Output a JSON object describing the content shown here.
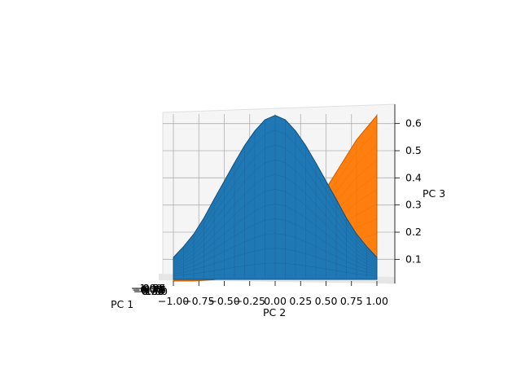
{
  "chart_data": {
    "type": "surface3d",
    "title": "",
    "xlabel": "PC 1",
    "ylabel": "PC 2",
    "zlabel": "PC 3",
    "y_ticks": [
      "−1.00",
      "−0.75",
      "−0.50",
      "−0.25",
      "0.00",
      "0.25",
      "0.50",
      "0.75",
      "1.00"
    ],
    "z_ticks": [
      "0.1",
      "0.2",
      "0.3",
      "0.4",
      "0.5",
      "0.6"
    ],
    "x_ticks": [
      "−1.00",
      "−0.75",
      "−0.50",
      "−0.25",
      "0.00",
      "0.25",
      "0.50",
      "0.75",
      "1.00"
    ],
    "ylim": [
      -1.0,
      1.0
    ],
    "zlim": [
      0.02,
      0.65
    ],
    "grid": true,
    "series": [
      {
        "color": "#1f77b4",
        "kind": "gaussian surface",
        "peak_y": 0.0,
        "sigma": 0.45,
        "peak_z": 0.63,
        "y": [
          -1.0,
          -0.9,
          -0.8,
          -0.7,
          -0.6,
          -0.5,
          -0.4,
          -0.3,
          -0.2,
          -0.1,
          0.0,
          0.1,
          0.2,
          0.3,
          0.4,
          0.5,
          0.6,
          0.7,
          0.8,
          0.9,
          1.0
        ],
        "z": [
          0.107,
          0.147,
          0.193,
          0.252,
          0.321,
          0.388,
          0.455,
          0.519,
          0.573,
          0.614,
          0.63,
          0.614,
          0.573,
          0.519,
          0.455,
          0.388,
          0.321,
          0.252,
          0.193,
          0.147,
          0.107
        ]
      },
      {
        "color": "#ff7f0e",
        "kind": "gaussian surface",
        "peak_y": 1.0,
        "sigma": 0.45,
        "peak_z": 0.63,
        "y": [
          -1.0,
          -0.8,
          -0.6,
          -0.4,
          -0.2,
          0.0,
          0.2,
          0.4,
          0.6,
          0.8,
          1.0
        ],
        "z": [
          0.02,
          0.02,
          0.025,
          0.04,
          0.07,
          0.11,
          0.19,
          0.3,
          0.42,
          0.54,
          0.63
        ]
      }
    ]
  }
}
